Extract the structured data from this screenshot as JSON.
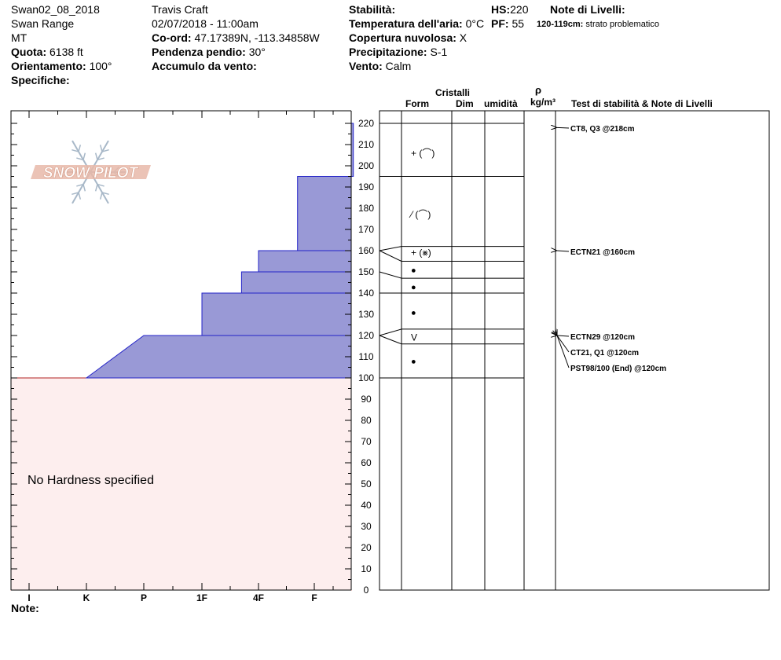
{
  "header": {
    "col1": {
      "pit_name": "Swan02_08_2018",
      "range": "Swan Range",
      "state": "MT",
      "elevation_label": "Quota:",
      "elevation_value": "6138 ft",
      "aspect_label": "Orientamento:",
      "aspect_value": "100°",
      "specifics_label": "Specifiche:"
    },
    "col2": {
      "observer": "Travis  Craft",
      "datetime": "02/07/2018 - 11:00am",
      "coord_label": "Co-ord:",
      "coord_value": "47.17389N, -113.34858W",
      "slope_label": "Pendenza pendio:",
      "slope_value": "30°",
      "wind_loading_label": "Accumulo da vento:"
    },
    "col3": {
      "stability_label": "Stabilità:",
      "air_temp_label": "Temperatura dell'aria:",
      "air_temp_value": "0°C",
      "cloud_label": "Copertura nuvolosa:",
      "cloud_value": "X",
      "precip_label": "Precipitazione:",
      "precip_value": "S-1",
      "wind_label": "Vento:",
      "wind_value": "Calm"
    },
    "col4": {
      "hs_label": "HS:",
      "hs_value": "220",
      "pf_label": "PF:",
      "pf_value": "55"
    },
    "col5": {
      "notes_label": "Note di Livelli:",
      "note_range": "120-119cm:",
      "note_text": "strato problematico"
    }
  },
  "watermark": "SNOW PILOT",
  "footer_note_label": "Note:",
  "table_headers": {
    "crystals": "Cristalli",
    "form": "Form",
    "size": "Dim",
    "moisture": "umidità",
    "density_symbol": "ρ",
    "density_unit": "kg/m³",
    "tests": "Test di stabilità & Note di Livelli"
  },
  "colors": {
    "hardness_fill": "#9999d6",
    "hardness_stroke": "#2424c8",
    "no_hardness_fill": "#fdeeee",
    "no_hardness_stroke": "#b22222",
    "watermark": "#e8b9a9"
  },
  "chart_data": {
    "type": "snow_profile",
    "y_axis": {
      "min": 0,
      "max": 220,
      "major_step": 10,
      "minor_step": 5,
      "unit": "cm"
    },
    "hardness_scale": [
      "I",
      "K",
      "P",
      "1F",
      "4F",
      "F"
    ],
    "hardness_layers": [
      {
        "bottom": 195,
        "top": 220,
        "hardness": 6.7
      },
      {
        "bottom": 160,
        "top": 195,
        "hardness": 5.7
      },
      {
        "bottom": 150,
        "top": 160,
        "hardness": 5.0
      },
      {
        "bottom": 140,
        "top": 150,
        "hardness": 4.7
      },
      {
        "bottom": 120,
        "top": 140,
        "hardness": 4.0
      },
      {
        "bottom": 100,
        "top": 120,
        "hardness": 3.0,
        "hardness_bottom": 2.0
      }
    ],
    "no_hardness": {
      "bottom": 0,
      "top": 100,
      "label": "No Hardness specified"
    },
    "layer_boundaries": [
      220,
      195,
      162,
      155,
      147,
      140,
      123,
      116,
      100
    ],
    "crystal_forms": [
      {
        "depth": 206,
        "symbol": "+ (⌒)"
      },
      {
        "depth": 177,
        "symbol": "⁄ (⌒)"
      },
      {
        "depth": 159,
        "symbol": "+ (⨳)"
      },
      {
        "depth": 151,
        "symbol": "●"
      },
      {
        "depth": 143,
        "symbol": "●"
      },
      {
        "depth": 131,
        "symbol": "●"
      },
      {
        "depth": 119,
        "symbol": "V"
      },
      {
        "depth": 108,
        "symbol": "●"
      }
    ],
    "tests": [
      {
        "depth": 218,
        "label": "CT8, Q3 @218cm"
      },
      {
        "depth": 160,
        "label": "ECTN21 @160cm"
      },
      {
        "depth": 120,
        "label": "ECTN29 @120cm"
      },
      {
        "depth": 120,
        "label": "CT21, Q1 @120cm"
      },
      {
        "depth": 120,
        "label": "PST98/100 (End) @120cm"
      }
    ]
  }
}
